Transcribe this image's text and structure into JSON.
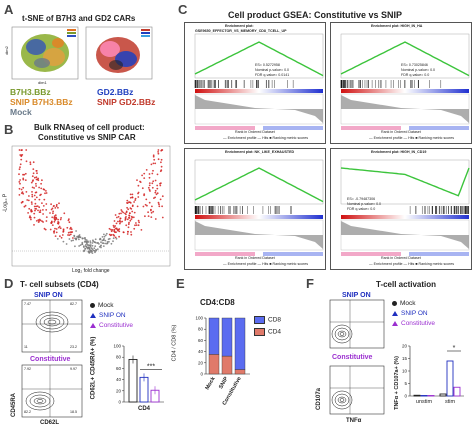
{
  "colors": {
    "b7h3": "#7a9a2e",
    "snip_b7h3": "#d98a2a",
    "mock": "#6a7a8a",
    "gd2": "#1f3fbf",
    "snip_gd2": "#c0392b",
    "mock_dot": "#222222",
    "snip_on": "#1f2fbf",
    "constitutive": "#9b2fd0",
    "cd8": "#5b6cf0",
    "cd4": "#e07a6a",
    "es_curve": "#3cc43c",
    "volcano_red": "#d22020",
    "volcano_grey": "#7a7a7a"
  },
  "panelA": {
    "letter": "A",
    "title": "t-SNE of B7H3 and GD2 CARs",
    "axis_y": "dim2",
    "axis_x": "dim1",
    "legend_left": [
      "B7H3.BBz",
      "SNIP B7H3.BBz",
      "Mock"
    ],
    "legend_right": [
      "GD2.BBz",
      "SNIP GD2.BBz"
    ]
  },
  "panelB": {
    "letter": "B",
    "title_line1": "Bulk RNAseq of cell product:",
    "title_line2": "Constitutive vs SNIP CAR",
    "xlabel": "Log₂ fold change",
    "ylabel": "-Log₁₀ P",
    "x_ticks": [
      "-5",
      "0",
      "5",
      "10"
    ],
    "y_ticks": [
      "0",
      "5",
      "10",
      "15",
      "20"
    ]
  },
  "panelC": {
    "letter": "C",
    "title": "Cell product GSEA: Constitutive vs SNIP",
    "plots": [
      {
        "header": "Enrichment plot:",
        "gene_set": "GSE9650_EFFECTOR_VS_MEMORY_CD8_TCELL_UP",
        "es": "ES= 0.5272958",
        "p": "Nominal p-value= 0.0",
        "fdr": "FDR q-value= 0.0141"
      },
      {
        "header": "Enrichment plot: HIGH_IN_HA",
        "gene_set": "",
        "es": "ES= 0.73025846",
        "p": "Nominal p-value= 0.0",
        "fdr": "FDR q-value= 0.0"
      },
      {
        "header": "Enrichment plot: NK_LIKE_EXHAUSTED",
        "gene_set": "",
        "es": "",
        "p": "",
        "fdr": ""
      },
      {
        "header": "Enrichment plot: HIGH_IN_CD19",
        "gene_set": "",
        "es": "ES= -0.79487306",
        "p": "Nominal p-value= 0.0",
        "fdr": "FDR q-value= 0.0"
      }
    ],
    "ylabel_es": "Enrichment score (ES)",
    "ylabel_rank": "Ranked list metric (Signal2Noise)",
    "xlabel": "Rank in Ordered Dataset",
    "zero_cross": "Zero cross at 7783",
    "pos_label": "'Constitutive' (positively correlated)",
    "neg_label": "'SNIP' (negatively correlated)",
    "legend_text": "— Enrichment profile — Hits  ■ Ranking metric scores"
  },
  "panelD": {
    "letter": "D",
    "title": "T- cell subsets (CD4)",
    "snip_label": "SNIP ON",
    "const_label": "Constitutive",
    "snip_quadrants": [
      "7.47",
      "82.7",
      "11",
      "23.2"
    ],
    "const_quadrants": [
      "7.92",
      "9.97",
      "82.2",
      "18.5"
    ],
    "xlabel": "CD62L",
    "ylabel": "CD45RA",
    "legend": [
      "Mock",
      "SNIP ON",
      "Constitutive"
    ],
    "bar_ylabel": "CD62L+ CD45RA+ (%)",
    "bar_yticks": [
      "0",
      "20",
      "40",
      "60",
      "80",
      "100"
    ],
    "bar_xlabel": "CD4",
    "significance": "***"
  },
  "panelE": {
    "letter": "E",
    "title": "CD4:CD8",
    "ylabel": "CD4 / CD8 (%)",
    "yticks": [
      "0",
      "20",
      "40",
      "60",
      "80",
      "100"
    ],
    "legend": [
      "CD8",
      "CD4"
    ]
  },
  "panelF": {
    "letter": "F",
    "title": "T-cell activation",
    "snip_label": "SNIP ON",
    "const_label": "Constitutive",
    "xlabel": "TNFα",
    "ylabel": "CD107a",
    "legend": [
      "Mock",
      "SNIP ON",
      "Constitutive"
    ],
    "bar_ylabel": "TNFα + CD107a+ (%)",
    "bar_yticks": [
      "0",
      "5",
      "10",
      "15",
      "20"
    ],
    "groups": [
      "unstim",
      "stim"
    ],
    "significance": "*"
  },
  "chart_data": [
    {
      "type": "bar",
      "panel": "D",
      "title": "T- cell subsets (CD4)",
      "categories": [
        "CD4"
      ],
      "series": [
        {
          "name": "Mock",
          "values": [
            76
          ]
        },
        {
          "name": "SNIP ON",
          "values": [
            44
          ]
        },
        {
          "name": "Constitutive",
          "values": [
            21
          ]
        }
      ],
      "ylabel": "CD62L+ CD45RA+ (%)",
      "ylim": [
        0,
        100
      ]
    },
    {
      "type": "bar",
      "panel": "E",
      "title": "CD4:CD8",
      "categories": [
        "Mock",
        "SNIP",
        "Constitutive"
      ],
      "series": [
        {
          "name": "CD4",
          "values": [
            35,
            32,
            8
          ]
        },
        {
          "name": "CD8",
          "values": [
            65,
            68,
            92
          ]
        }
      ],
      "ylabel": "CD4 / CD8 (%)",
      "ylim": [
        0,
        100
      ]
    },
    {
      "type": "bar",
      "panel": "F",
      "title": "T-cell activation",
      "categories": [
        "unstim",
        "stim"
      ],
      "series": [
        {
          "name": "Mock",
          "values": [
            0.3,
            0.8
          ]
        },
        {
          "name": "SNIP ON",
          "values": [
            0.2,
            14
          ]
        },
        {
          "name": "Constitutive",
          "values": [
            0.2,
            3.5
          ]
        }
      ],
      "ylabel": "TNFα + CD107a+ (%)",
      "ylim": [
        0,
        20
      ]
    }
  ]
}
